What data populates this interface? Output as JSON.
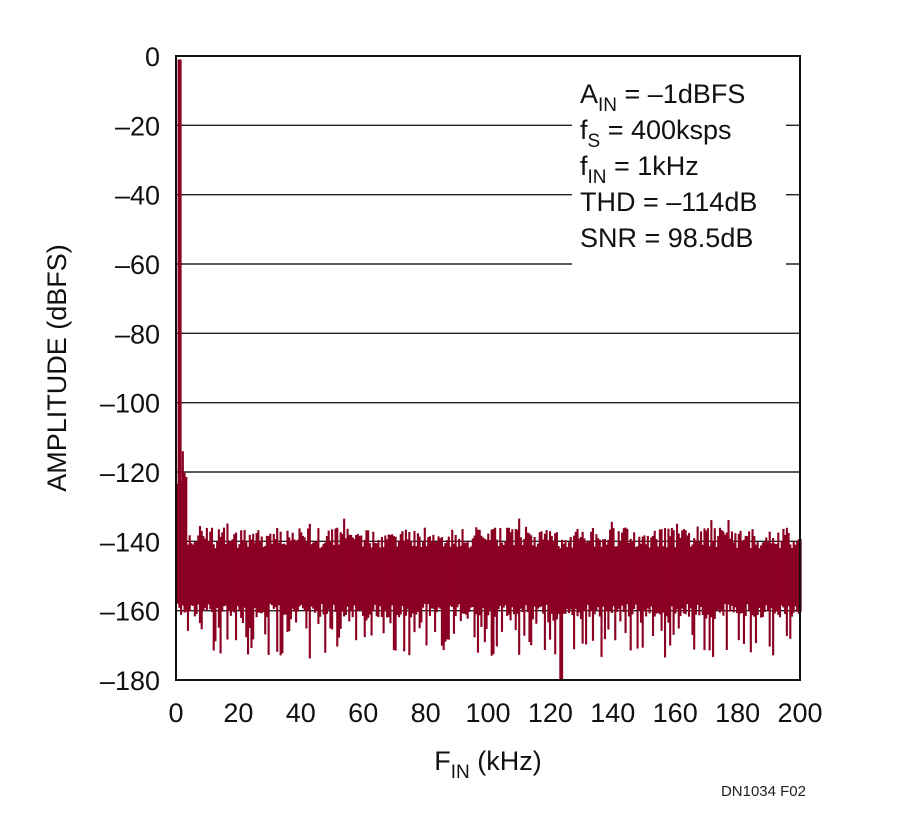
{
  "chart_data": {
    "type": "bar",
    "title": "",
    "xlabel": {
      "main": "F",
      "sub": "IN",
      "rest": " (kHz)"
    },
    "ylabel": "AMPLITUDE (dBFS)",
    "xlim": [
      0,
      200
    ],
    "ylim": [
      -180,
      0
    ],
    "xticks": [
      0,
      20,
      40,
      60,
      80,
      100,
      120,
      140,
      160,
      180,
      200
    ],
    "yticks": [
      0,
      -20,
      -40,
      -60,
      -80,
      -100,
      -120,
      -140,
      -160,
      -180
    ],
    "ytick_labels": [
      "0",
      "–20",
      "–40",
      "–60",
      "–80",
      "–100",
      "–120",
      "–140",
      "–160",
      "–180"
    ],
    "grid": "horizontal",
    "series_color": "#8b0022",
    "signal": {
      "frequency_khz": 1,
      "amplitude_dbfs": -1
    },
    "noise_floor": {
      "top_dbfs": -136,
      "bottom_dbfs": -162,
      "min_spur_dbfs": -180,
      "min_spur_khz": 123
    },
    "annotations": [
      {
        "main": "A",
        "sub": "IN",
        "rest": " = –1dBFS"
      },
      {
        "main": "f",
        "sub": "S",
        "rest": " = 400ksps"
      },
      {
        "main": "f",
        "sub": "IN",
        "rest": " = 1kHz"
      },
      {
        "main": "THD = –114dB",
        "sub": "",
        "rest": ""
      },
      {
        "main": "SNR = 98.5dB",
        "sub": "",
        "rest": ""
      }
    ]
  },
  "figure_id": "DN1034 F02"
}
